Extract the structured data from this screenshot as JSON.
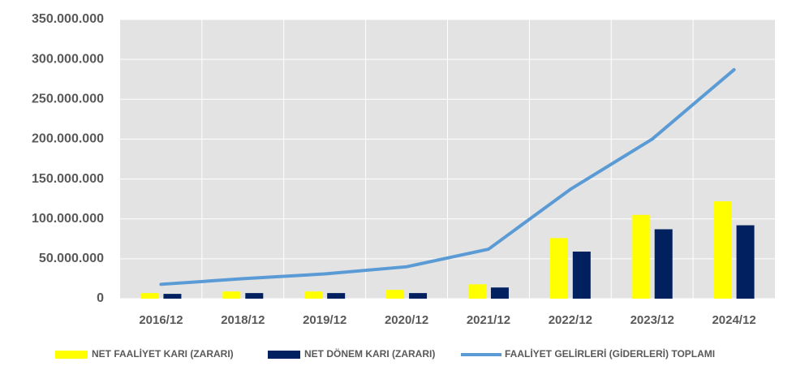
{
  "chart_data": {
    "type": "bar-line",
    "categories": [
      "2016/12",
      "2018/12",
      "2019/12",
      "2020/12",
      "2021/12",
      "2022/12",
      "2023/12",
      "2024/12"
    ],
    "series": [
      {
        "name": "NET FAALİYET KARI (ZARARI)",
        "type": "bar",
        "color": "#ffff00",
        "values": [
          7000000,
          9000000,
          9000000,
          11000000,
          18000000,
          76000000,
          105000000,
          122000000
        ]
      },
      {
        "name": "NET DÖNEM KARI (ZARARI)",
        "type": "bar",
        "color": "#002060",
        "values": [
          6000000,
          7000000,
          7000000,
          7000000,
          14000000,
          59000000,
          87000000,
          92000000
        ]
      },
      {
        "name": "FAALİYET GELİRLERİ (GİDERLERİ) TOPLAMI",
        "type": "line",
        "color": "#5b9bd5",
        "values": [
          18000000,
          25000000,
          31000000,
          40000000,
          62000000,
          137000000,
          200000000,
          287000000
        ]
      }
    ],
    "ylim": [
      0,
      350000000
    ],
    "yticks": [
      0,
      {
        "value": 50000000,
        "label": "50.000.000"
      },
      {
        "value": 100000000,
        "label": "100.000.000"
      },
      {
        "value": 150000000,
        "label": "150.000.000"
      },
      {
        "value": 200000000,
        "label": "200.000.000"
      },
      {
        "value": 250000000,
        "label": "250.000.000"
      },
      {
        "value": 300000000,
        "label": "300.000.000"
      },
      {
        "value": 350000000,
        "label": "350.000.000"
      }
    ],
    "grid": true,
    "legend": "bottom"
  }
}
